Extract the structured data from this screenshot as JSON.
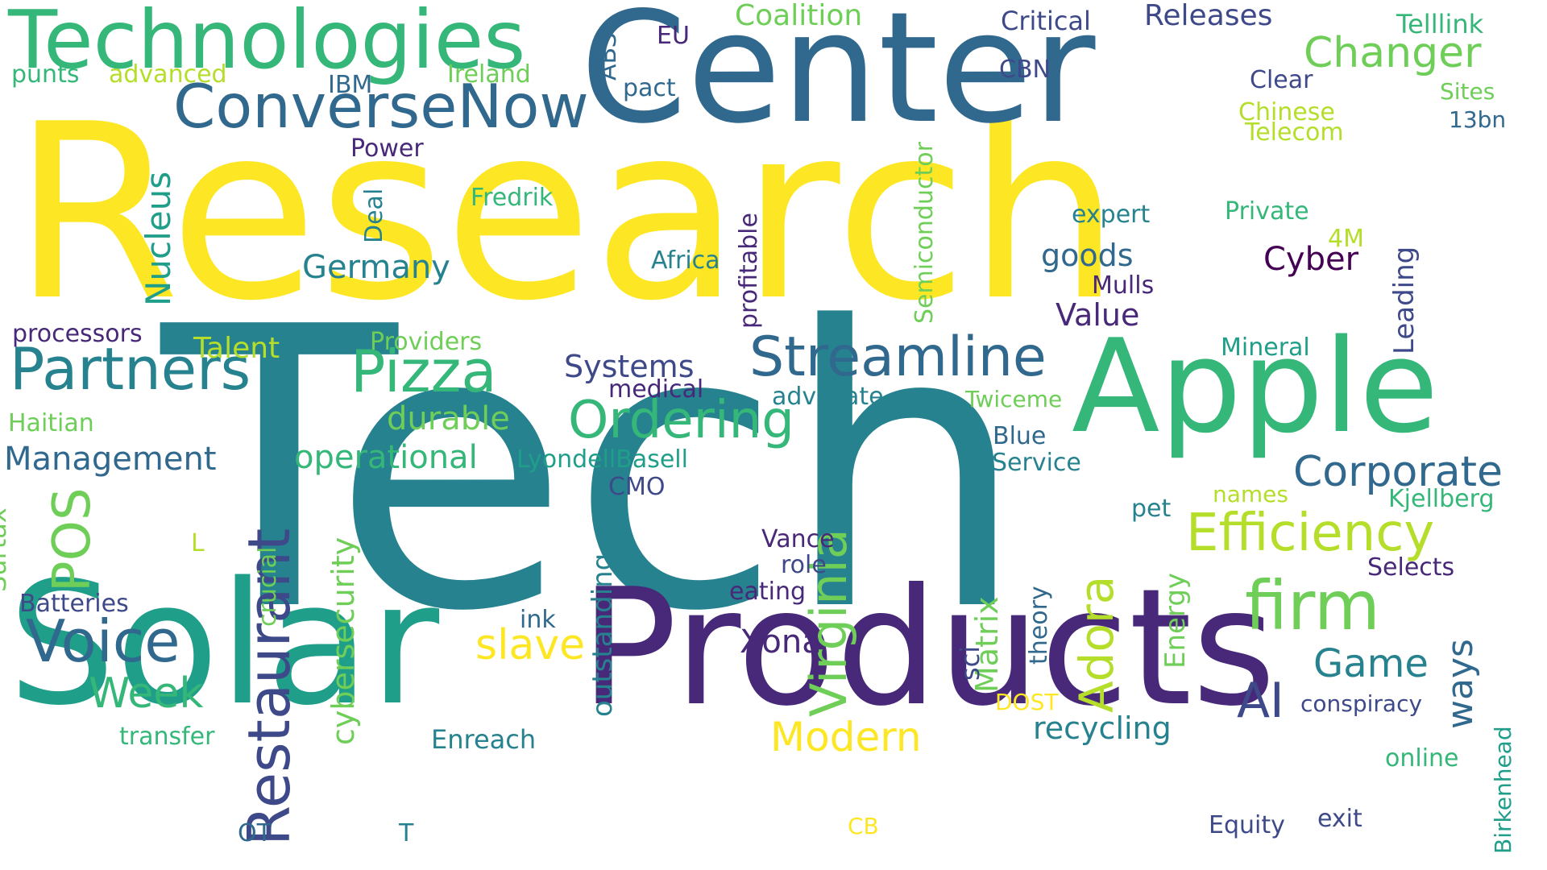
{
  "palette": {
    "yellow": "#fde725",
    "yellow_green": "#b5de2b",
    "light_green": "#6ece58",
    "green": "#35b779",
    "teal_green": "#1f9e89",
    "teal": "#26828e",
    "blue": "#31688e",
    "indigo": "#3e4989",
    "purple": "#482878",
    "dark_purple": "#440154"
  },
  "words": [
    {
      "text": "Research",
      "color": "#fde725",
      "orientation": "horizontal"
    },
    {
      "text": "Tech",
      "color": "#26828e",
      "orientation": "horizontal"
    },
    {
      "text": "Center",
      "color": "#31688e",
      "orientation": "horizontal"
    },
    {
      "text": "Products",
      "color": "#482878",
      "orientation": "horizontal"
    },
    {
      "text": "Solar",
      "color": "#1f9e89",
      "orientation": "horizontal"
    },
    {
      "text": "Apple",
      "color": "#35b779",
      "orientation": "horizontal"
    },
    {
      "text": "Technologies",
      "color": "#35b779",
      "orientation": "horizontal"
    },
    {
      "text": "ConverseNow",
      "color": "#31688e",
      "orientation": "horizontal"
    },
    {
      "text": "Partners",
      "color": "#26828e",
      "orientation": "horizontal"
    },
    {
      "text": "Pizza",
      "color": "#35b779",
      "orientation": "horizontal"
    },
    {
      "text": "Streamline",
      "color": "#31688e",
      "orientation": "horizontal"
    },
    {
      "text": "Ordering",
      "color": "#35b779",
      "orientation": "horizontal"
    },
    {
      "text": "Voice",
      "color": "#31688e",
      "orientation": "horizontal"
    },
    {
      "text": "Efficiency",
      "color": "#b5de2b",
      "orientation": "horizontal"
    },
    {
      "text": "firm",
      "color": "#6ece58",
      "orientation": "horizontal"
    },
    {
      "text": "Corporate",
      "color": "#31688e",
      "orientation": "horizontal"
    },
    {
      "text": "Changer",
      "color": "#6ece58",
      "orientation": "horizontal"
    },
    {
      "text": "Restaurant",
      "color": "#3e4989",
      "orientation": "vertical"
    },
    {
      "text": "Virginia",
      "color": "#6ece58",
      "orientation": "vertical"
    },
    {
      "text": "Adora",
      "color": "#b5de2b",
      "orientation": "vertical"
    },
    {
      "text": "POS",
      "color": "#6ece58",
      "orientation": "vertical"
    },
    {
      "text": "Nucleus",
      "color": "#1f9e89",
      "orientation": "vertical"
    },
    {
      "text": "cybersecurity",
      "color": "#6ece58",
      "orientation": "vertical"
    },
    {
      "text": "Semiconductor",
      "color": "#6ece58",
      "orientation": "vertical"
    },
    {
      "text": "profitable",
      "color": "#482878",
      "orientation": "vertical"
    },
    {
      "text": "ways",
      "color": "#31688e",
      "orientation": "vertical"
    },
    {
      "text": "Leading",
      "color": "#3e4989",
      "orientation": "vertical"
    },
    {
      "text": "Birkenhead",
      "color": "#1f9e89",
      "orientation": "vertical"
    },
    {
      "text": "Energy",
      "color": "#6ece58",
      "orientation": "vertical"
    },
    {
      "text": "Matrix",
      "color": "#6ece58",
      "orientation": "vertical"
    },
    {
      "text": "theory",
      "color": "#31688e",
      "orientation": "vertical"
    },
    {
      "text": "sci",
      "color": "#3e4989",
      "orientation": "vertical"
    },
    {
      "text": "outstanding",
      "color": "#26828e",
      "orientation": "vertical"
    },
    {
      "text": "crucial",
      "color": "#6ece58",
      "orientation": "vertical"
    },
    {
      "text": "Surtax",
      "color": "#6ece58",
      "orientation": "vertical"
    },
    {
      "text": "Deal",
      "color": "#26828e",
      "orientation": "vertical"
    },
    {
      "text": "ABS",
      "color": "#31688e",
      "orientation": "vertical"
    },
    {
      "text": "Modern",
      "color": "#fde725",
      "orientation": "horizontal"
    },
    {
      "text": "slave",
      "color": "#fde725",
      "orientation": "horizontal"
    },
    {
      "text": "Game",
      "color": "#26828e",
      "orientation": "horizontal"
    },
    {
      "text": "AI",
      "color": "#3e4989",
      "orientation": "horizontal"
    },
    {
      "text": "Week",
      "color": "#35b779",
      "orientation": "horizontal"
    },
    {
      "text": "Management",
      "color": "#31688e",
      "orientation": "horizontal"
    },
    {
      "text": "operational",
      "color": "#35b779",
      "orientation": "horizontal"
    },
    {
      "text": "durable",
      "color": "#6ece58",
      "orientation": "horizontal"
    },
    {
      "text": "Germany",
      "color": "#26828e",
      "orientation": "horizontal"
    },
    {
      "text": "recycling",
      "color": "#26828e",
      "orientation": "horizontal"
    },
    {
      "text": "Cyber",
      "color": "#440154",
      "orientation": "horizontal"
    },
    {
      "text": "goods",
      "color": "#31688e",
      "orientation": "horizontal"
    },
    {
      "text": "Value",
      "color": "#482878",
      "orientation": "horizontal"
    },
    {
      "text": "Releases",
      "color": "#3e4989",
      "orientation": "horizontal"
    },
    {
      "text": "Coalition",
      "color": "#6ece58",
      "orientation": "horizontal"
    },
    {
      "text": "Critical",
      "color": "#3e4989",
      "orientation": "horizontal"
    },
    {
      "text": "Telllink",
      "color": "#35b779",
      "orientation": "horizontal"
    },
    {
      "text": "EU",
      "color": "#482878",
      "orientation": "horizontal"
    },
    {
      "text": "CBN",
      "color": "#3e4989",
      "orientation": "horizontal"
    },
    {
      "text": "Clear",
      "color": "#3e4989",
      "orientation": "horizontal"
    },
    {
      "text": "Sites",
      "color": "#6ece58",
      "orientation": "horizontal"
    },
    {
      "text": "13bn",
      "color": "#31688e",
      "orientation": "horizontal"
    },
    {
      "text": "Chinese",
      "color": "#b5de2b",
      "orientation": "horizontal"
    },
    {
      "text": "Telecom",
      "color": "#b5de2b",
      "orientation": "horizontal"
    },
    {
      "text": "Private",
      "color": "#35b779",
      "orientation": "horizontal"
    },
    {
      "text": "4M",
      "color": "#b5de2b",
      "orientation": "horizontal"
    },
    {
      "text": "expert",
      "color": "#26828e",
      "orientation": "horizontal"
    },
    {
      "text": "Mulls",
      "color": "#482878",
      "orientation": "horizontal"
    },
    {
      "text": "Mineral",
      "color": "#1f9e89",
      "orientation": "horizontal"
    },
    {
      "text": "Twiceme",
      "color": "#6ece58",
      "orientation": "horizontal"
    },
    {
      "text": "Blue",
      "color": "#31688e",
      "orientation": "horizontal"
    },
    {
      "text": "Service",
      "color": "#26828e",
      "orientation": "horizontal"
    },
    {
      "text": "names",
      "color": "#b5de2b",
      "orientation": "horizontal"
    },
    {
      "text": "Kjellberg",
      "color": "#35b779",
      "orientation": "horizontal"
    },
    {
      "text": "pet",
      "color": "#26828e",
      "orientation": "horizontal"
    },
    {
      "text": "Selects",
      "color": "#482878",
      "orientation": "horizontal"
    },
    {
      "text": "conspiracy",
      "color": "#3e4989",
      "orientation": "horizontal"
    },
    {
      "text": "online",
      "color": "#35b779",
      "orientation": "horizontal"
    },
    {
      "text": "Equity",
      "color": "#3e4989",
      "orientation": "horizontal"
    },
    {
      "text": "exit",
      "color": "#3e4989",
      "orientation": "horizontal"
    },
    {
      "text": "DOST",
      "color": "#fde725",
      "orientation": "horizontal"
    },
    {
      "text": "CB",
      "color": "#fde725",
      "orientation": "horizontal"
    },
    {
      "text": "Xona",
      "color": "#482878",
      "orientation": "horizontal"
    },
    {
      "text": "Vance",
      "color": "#482878",
      "orientation": "horizontal"
    },
    {
      "text": "role",
      "color": "#3e4989",
      "orientation": "horizontal"
    },
    {
      "text": "eating",
      "color": "#482878",
      "orientation": "horizontal"
    },
    {
      "text": "ink",
      "color": "#31688e",
      "orientation": "horizontal"
    },
    {
      "text": "Enreach",
      "color": "#26828e",
      "orientation": "horizontal"
    },
    {
      "text": "transfer",
      "color": "#35b779",
      "orientation": "horizontal"
    },
    {
      "text": "OT",
      "color": "#31688e",
      "orientation": "horizontal"
    },
    {
      "text": "T",
      "color": "#26828e",
      "orientation": "horizontal"
    },
    {
      "text": "Batteries",
      "color": "#3e4989",
      "orientation": "horizontal"
    },
    {
      "text": "L",
      "color": "#b5de2b",
      "orientation": "horizontal"
    },
    {
      "text": "Haitian",
      "color": "#6ece58",
      "orientation": "horizontal"
    },
    {
      "text": "processors",
      "color": "#482878",
      "orientation": "horizontal"
    },
    {
      "text": "Talent",
      "color": "#b5de2b",
      "orientation": "horizontal"
    },
    {
      "text": "Providers",
      "color": "#6ece58",
      "orientation": "horizontal"
    },
    {
      "text": "Systems",
      "color": "#3e4989",
      "orientation": "horizontal"
    },
    {
      "text": "medical",
      "color": "#482878",
      "orientation": "horizontal"
    },
    {
      "text": "advocate",
      "color": "#26828e",
      "orientation": "horizontal"
    },
    {
      "text": "LyondellBasell",
      "color": "#1f9e89",
      "orientation": "horizontal"
    },
    {
      "text": "CMO",
      "color": "#3e4989",
      "orientation": "horizontal"
    },
    {
      "text": "Africa",
      "color": "#26828e",
      "orientation": "horizontal"
    },
    {
      "text": "Fredrik",
      "color": "#35b779",
      "orientation": "horizontal"
    },
    {
      "text": "Power",
      "color": "#482878",
      "orientation": "horizontal"
    },
    {
      "text": "IBM",
      "color": "#31688e",
      "orientation": "horizontal"
    },
    {
      "text": "Ireland",
      "color": "#6ece58",
      "orientation": "horizontal"
    },
    {
      "text": "advanced",
      "color": "#b5de2b",
      "orientation": "horizontal"
    },
    {
      "text": "punts",
      "color": "#35b779",
      "orientation": "horizontal"
    },
    {
      "text": "pact",
      "color": "#31688e",
      "orientation": "horizontal"
    }
  ]
}
